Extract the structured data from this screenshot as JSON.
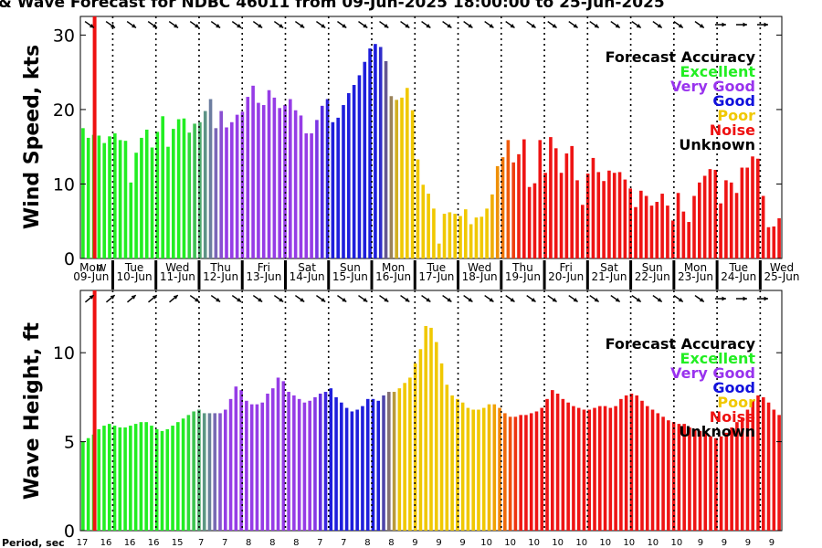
{
  "title": "& Wave Forecast for NDBC 46011 from 09-Jun-2025 18:00:00 to 25-Jun-2025",
  "day_labels": [
    {
      "dow": "Mon",
      "date": "09-Jun"
    },
    {
      "dow": "Tue",
      "date": "10-Jun"
    },
    {
      "dow": "Wed",
      "date": "11-Jun"
    },
    {
      "dow": "Thu",
      "date": "12-Jun"
    },
    {
      "dow": "Fri",
      "date": "13-Jun"
    },
    {
      "dow": "Sat",
      "date": "14-Jun"
    },
    {
      "dow": "Sun",
      "date": "15-Jun"
    },
    {
      "dow": "Mon",
      "date": "16-Jun"
    },
    {
      "dow": "Tue",
      "date": "17-Jun"
    },
    {
      "dow": "Wed",
      "date": "18-Jun"
    },
    {
      "dow": "Thu",
      "date": "19-Jun"
    },
    {
      "dow": "Fri",
      "date": "20-Jun"
    },
    {
      "dow": "Sat",
      "date": "21-Jun"
    },
    {
      "dow": "Sun",
      "date": "22-Jun"
    },
    {
      "dow": "Mon",
      "date": "23-Jun"
    },
    {
      "dow": "Tue",
      "date": "24-Jun"
    },
    {
      "dow": "Wed",
      "date": "25-Jun"
    }
  ],
  "now_marker_label": "W",
  "period_label": "Period, sec",
  "period_values": [
    "17",
    "16",
    "16",
    "16",
    "15",
    "7",
    "7",
    "8",
    "8",
    "8",
    "7",
    "7",
    "8",
    "8",
    "9",
    "9",
    "9",
    "10",
    "10",
    "10",
    "10",
    "10",
    "10",
    "10",
    "10",
    "10",
    "9",
    "9",
    "9",
    "9"
  ],
  "legend": {
    "title": "Forecast Accuracy",
    "entries": [
      {
        "label": "Excellent",
        "color": "#22ee22"
      },
      {
        "label": "Very Good",
        "color": "#9933ee"
      },
      {
        "label": "Good",
        "color": "#1111dd"
      },
      {
        "label": "Poor",
        "color": "#f0c800"
      },
      {
        "label": "Noise",
        "color": "#ee1111"
      },
      {
        "label": "Unknown",
        "color": "#000000"
      }
    ]
  },
  "chart_data": [
    {
      "type": "bar",
      "title": "",
      "xlabel": "",
      "ylabel": "Wind Speed, kts",
      "ylim": [
        0,
        32.5
      ],
      "yticks": [
        0,
        10,
        20,
        30
      ],
      "x_range_days": [
        "09-Jun",
        "25-Jun"
      ],
      "values": [
        17.5,
        16.2,
        16.6,
        16.5,
        15.5,
        16.4,
        16.8,
        15.9,
        15.8,
        10.2,
        14.2,
        16.2,
        17.3,
        14.9,
        17.0,
        19.1,
        15.0,
        17.4,
        18.7,
        18.8,
        16.9,
        18.1,
        18.3,
        19.8,
        21.4,
        17.5,
        19.8,
        17.6,
        18.3,
        19.3,
        19.7,
        21.7,
        23.2,
        20.9,
        20.6,
        22.6,
        21.6,
        20.2,
        20.6,
        21.4,
        19.9,
        19.2,
        16.8,
        16.8,
        18.6,
        20.5,
        21.4,
        18.3,
        18.9,
        20.6,
        22.2,
        23.3,
        24.6,
        26.4,
        28.2,
        28.8,
        28.4,
        26.5,
        21.8,
        21.3,
        21.6,
        22.9,
        19.9,
        13.3,
        9.9,
        8.7,
        6.7,
        2.0,
        6.0,
        6.2,
        6.0,
        5.7,
        6.6,
        4.6,
        5.5,
        5.6,
        6.7,
        8.6,
        12.4,
        13.6,
        15.9,
        12.9,
        14.0,
        16.0,
        9.6,
        10.1,
        15.9,
        11.5,
        16.3,
        14.8,
        11.5,
        14.1,
        15.1,
        10.5,
        7.2,
        11.4,
        13.5,
        11.6,
        10.4,
        11.8,
        11.5,
        11.6,
        10.6,
        9.4,
        6.9,
        9.1,
        8.4,
        7.1,
        7.6,
        8.7,
        7.1,
        5.1,
        8.8,
        6.3,
        4.9,
        8.4,
        10.2,
        11.1,
        12.0,
        11.9,
        7.4,
        10.5,
        10.2,
        8.8,
        12.2,
        12.2,
        13.7,
        13.4,
        8.4,
        4.2,
        4.3,
        5.4
      ],
      "accuracy_by_bar": "Excellent (Mon-Thu), Very Good (Thu-Sat), Good (Sat-Mon), Poor (Mon-Wed), Noise (Thu-Wed)"
    },
    {
      "type": "bar",
      "title": "",
      "xlabel": "",
      "ylabel": "Wave Height, ft",
      "ylim": [
        0,
        13.5
      ],
      "yticks": [
        0,
        5,
        10
      ],
      "x_range_days": [
        "09-Jun",
        "25-Jun"
      ],
      "values": [
        5.0,
        5.2,
        5.4,
        5.7,
        5.9,
        6.0,
        5.9,
        5.8,
        5.8,
        5.9,
        6.0,
        6.1,
        6.1,
        5.9,
        5.7,
        5.6,
        5.7,
        5.9,
        6.1,
        6.3,
        6.5,
        6.7,
        6.8,
        6.6,
        6.6,
        6.6,
        6.6,
        6.8,
        7.4,
        8.1,
        7.9,
        7.3,
        7.1,
        7.1,
        7.2,
        7.7,
        8.0,
        8.6,
        8.4,
        7.8,
        7.6,
        7.4,
        7.2,
        7.3,
        7.5,
        7.7,
        7.8,
        8.0,
        7.5,
        7.2,
        6.9,
        6.7,
        6.8,
        7.0,
        7.4,
        7.4,
        7.3,
        7.6,
        7.8,
        7.8,
        8.0,
        8.3,
        8.6,
        9.4,
        10.2,
        11.5,
        11.4,
        10.6,
        9.4,
        8.2,
        7.6,
        7.4,
        7.2,
        6.9,
        6.8,
        6.8,
        6.9,
        7.1,
        7.1,
        6.9,
        6.6,
        6.4,
        6.4,
        6.5,
        6.5,
        6.6,
        6.7,
        6.9,
        7.4,
        7.9,
        7.7,
        7.4,
        7.2,
        7.0,
        6.9,
        6.8,
        6.8,
        6.9,
        7.0,
        7.0,
        6.9,
        7.0,
        7.4,
        7.6,
        7.7,
        7.6,
        7.3,
        7.0,
        6.8,
        6.6,
        6.4,
        6.2,
        6.1,
        6.0,
        6.0,
        5.8,
        5.7,
        5.6,
        5.5,
        5.3,
        5.2,
        5.3,
        5.5,
        5.8,
        6.1,
        6.3,
        6.8,
        7.3,
        7.6,
        7.5,
        7.2,
        6.8,
        6.5
      ]
    }
  ]
}
